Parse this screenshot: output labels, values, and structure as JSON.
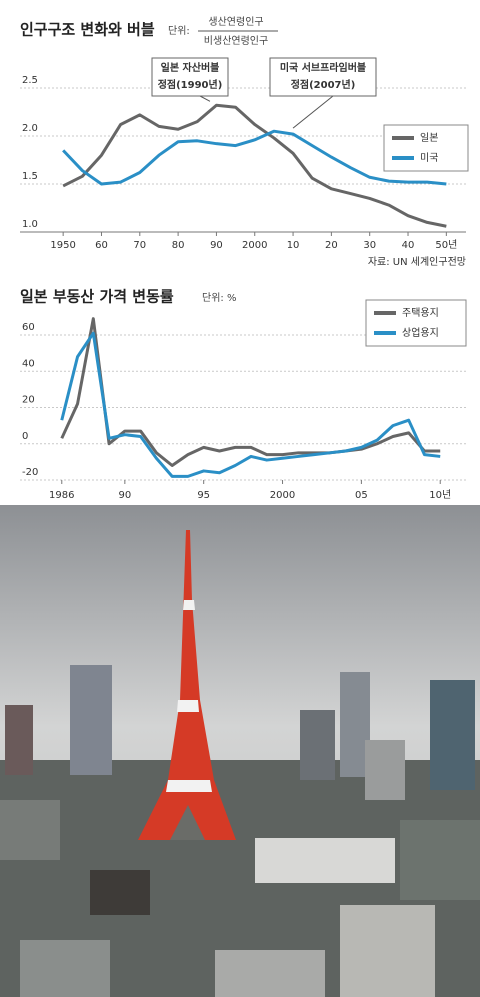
{
  "chart_data": [
    {
      "type": "line",
      "title": "인구구조 변화와 버블",
      "unit": {
        "label": "단위:",
        "numerator": "생산연령인구",
        "denominator": "비생산연령인구"
      },
      "x": [
        1950,
        1955,
        1960,
        1965,
        1970,
        1975,
        1980,
        1985,
        1990,
        1995,
        2000,
        2005,
        2010,
        2015,
        2020,
        2025,
        2030,
        2035,
        2040,
        2045,
        2050
      ],
      "series": [
        {
          "name": "일본",
          "color": "#666666",
          "values": [
            1.48,
            1.58,
            1.8,
            2.12,
            2.22,
            2.1,
            2.07,
            2.15,
            2.32,
            2.3,
            2.12,
            1.98,
            1.82,
            1.56,
            1.45,
            1.4,
            1.35,
            1.28,
            1.17,
            1.1,
            1.06
          ]
        },
        {
          "name": "미국",
          "color": "#2a8fc6",
          "values": [
            1.85,
            1.64,
            1.5,
            1.52,
            1.62,
            1.8,
            1.94,
            1.95,
            1.92,
            1.9,
            1.96,
            2.05,
            2.02,
            1.9,
            1.78,
            1.67,
            1.57,
            1.53,
            1.52,
            1.52,
            1.5
          ]
        }
      ],
      "xlim": [
        1945,
        2052
      ],
      "xticks": [
        {
          "value": 1950,
          "label": "1950"
        },
        {
          "value": 1960,
          "label": "60"
        },
        {
          "value": 1970,
          "label": "70"
        },
        {
          "value": 1980,
          "label": "80"
        },
        {
          "value": 1990,
          "label": "90"
        },
        2000,
        {
          "value": 2010,
          "label": "10"
        },
        {
          "value": 2020,
          "label": "20"
        },
        {
          "value": 2030,
          "label": "30"
        },
        {
          "value": 2040,
          "label": "40"
        },
        {
          "value": 2050,
          "label": "50년"
        }
      ],
      "ylim": [
        1,
        2.5
      ],
      "yticks": [
        {
          "value": 1,
          "label": "1.0"
        },
        1.5,
        {
          "value": 2,
          "label": "2.0"
        },
        2.5
      ],
      "grid": true,
      "legend": "right",
      "annotations": [
        [
          "일본 자산버블",
          "정점(1990년)"
        ],
        [
          "미국 서브프라임버블",
          "정점(2007년)"
        ]
      ],
      "source": "자료: UN 세계인구전망"
    },
    {
      "type": "line",
      "title": "일본 부동산 가격 변동률",
      "unit": {
        "label": "단위: %"
      },
      "x": [
        1986,
        1987,
        1988,
        1989,
        1990,
        1991,
        1992,
        1993,
        1994,
        1995,
        1996,
        1997,
        1998,
        1999,
        2000,
        2001,
        2002,
        2003,
        2004,
        2005,
        2006,
        2007,
        2008,
        2009,
        2010
      ],
      "series": [
        {
          "name": "주택용지",
          "color": "#666666",
          "values": [
            3,
            22,
            69,
            0,
            7,
            7,
            -5,
            -12,
            -6,
            -2,
            -4,
            -2,
            -2,
            -6,
            -6,
            -5,
            -5,
            -5,
            -4,
            -3,
            0,
            4,
            6,
            -4,
            -4
          ]
        },
        {
          "name": "상업용지",
          "color": "#2a8fc6",
          "values": [
            13,
            48,
            61,
            3,
            5,
            4,
            -8,
            -18,
            -18,
            -15,
            -16,
            -12,
            -7,
            -9,
            -8,
            -7,
            -6,
            -5,
            -4,
            -2,
            2,
            10,
            13,
            -6,
            -7
          ]
        }
      ],
      "xlim": [
        1985,
        2011
      ],
      "xticks": [
        1986,
        {
          "value": 1990,
          "label": "90"
        },
        {
          "value": 1995,
          "label": "95"
        },
        2000,
        {
          "value": 2005,
          "label": "05"
        },
        {
          "value": 2010,
          "label": "10년"
        }
      ],
      "ylim": [
        -20,
        60
      ],
      "yticks": [
        60,
        40,
        20,
        0,
        -20
      ],
      "grid": true,
      "legend": "upper right"
    }
  ]
}
